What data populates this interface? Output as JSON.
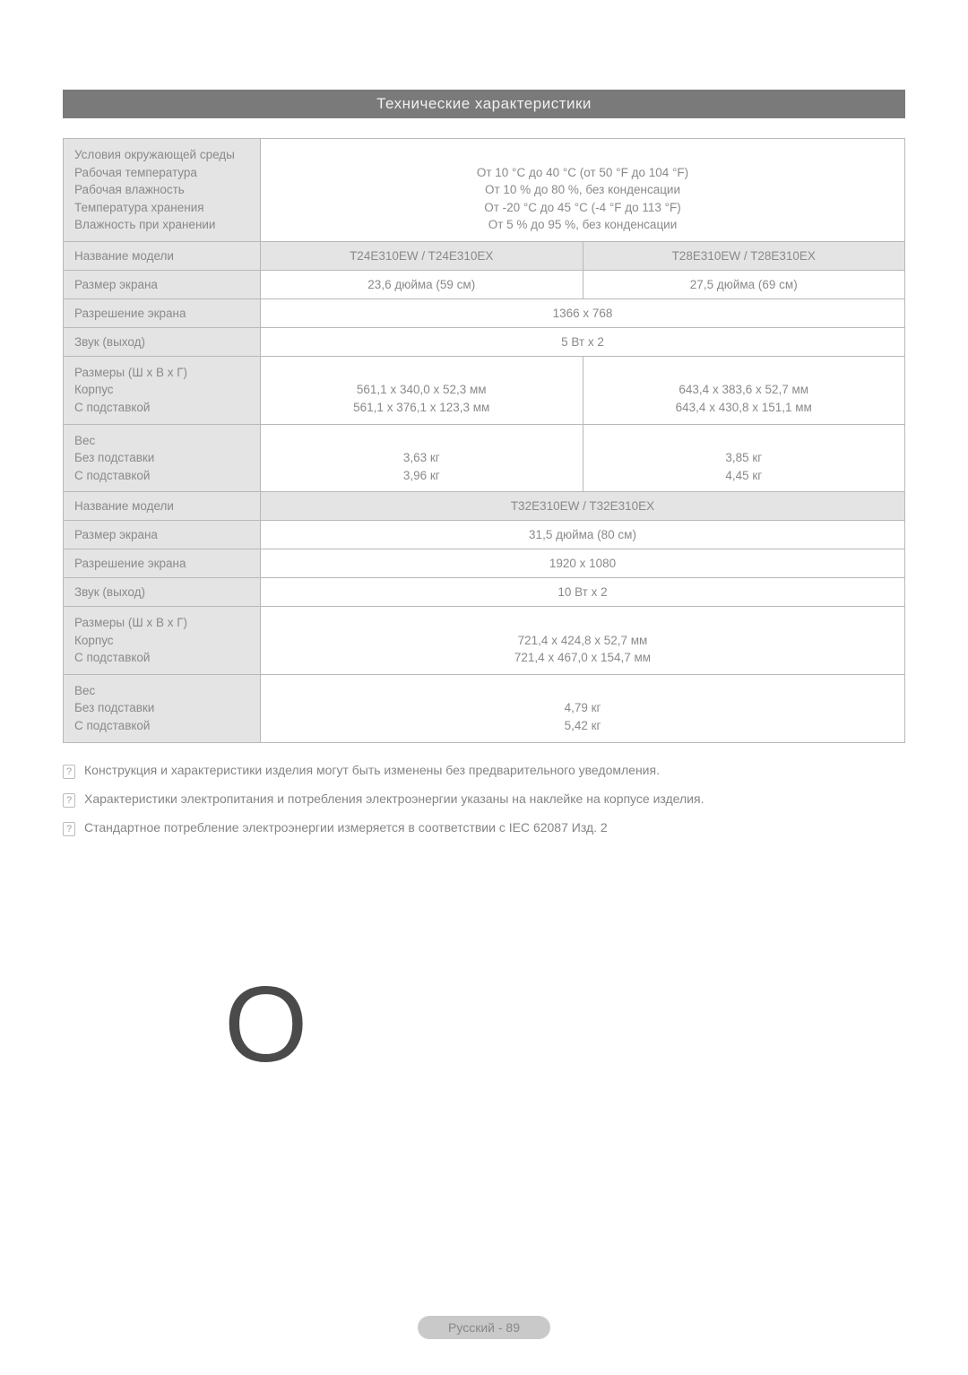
{
  "title": "Технические характеристики",
  "env": {
    "labels": [
      "Условия окружающей среды",
      "Рабочая температура",
      "Рабочая влажность",
      "Температура хранения",
      "Влажность при хранении"
    ],
    "values": [
      "",
      "От 10 °С до 40 °С (от 50 °F до 104 °F)",
      "От 10 % до 80 %, без конденсации",
      "От -20 °С до 45 °С (-4 °F до 113 °F)",
      "От 5 % до 95 %, без конденсации"
    ]
  },
  "block1": {
    "model_label": "Название модели",
    "model_a": "T24E310EW / T24E310EX",
    "model_b": "T28E310EW / T28E310EX",
    "screen_size_label": "Размер экрана",
    "screen_size_a": "23,6 дюйма (59 см)",
    "screen_size_b": "27,5 дюйма (69 см)",
    "resolution_label": "Разрешение экрана",
    "resolution": "1366 x 768",
    "sound_label": "Звук (выход)",
    "sound": "5 Вт x 2",
    "dims_labels": [
      "Размеры (Ш x В x Г)",
      "Корпус",
      "С подставкой"
    ],
    "dims_a": [
      "",
      "561,1 x 340,0 x 52,3 мм",
      "561,1 x 376,1 x 123,3 мм"
    ],
    "dims_b": [
      "",
      "643,4 x 383,6 x 52,7 мм",
      "643,4 x 430,8 x 151,1 мм"
    ],
    "weight_labels": [
      "Вес",
      "Без подставки",
      "С подставкой"
    ],
    "weight_a": [
      "",
      "3,63 кг",
      "3,96 кг"
    ],
    "weight_b": [
      "",
      "3,85 кг",
      "4,45 кг"
    ]
  },
  "block2": {
    "model_label": "Название модели",
    "model": "T32E310EW / T32E310EX",
    "screen_size_label": "Размер экрана",
    "screen_size": "31,5 дюйма (80 см)",
    "resolution_label": "Разрешение экрана",
    "resolution": "1920 x 1080",
    "sound_label": "Звук (выход)",
    "sound": "10 Вт x 2",
    "dims_labels": [
      "Размеры (Ш x В x Г)",
      "Корпус",
      "С подставкой"
    ],
    "dims": [
      "",
      "721,4 x 424,8 x 52,7 мм",
      "721,4 x 467,0 x 154,7 мм"
    ],
    "weight_labels": [
      "Вес",
      "Без подставки",
      "С подставкой"
    ],
    "weight": [
      "",
      "4,79 кг",
      "5,42 кг"
    ]
  },
  "notes": [
    "Конструкция и характеристики изделия могут быть изменены без предварительного уведомления.",
    "Характеристики электропитания и потребления электроэнергии указаны на наклейке на корпусе изделия.",
    "Стандартное потребление электроэнергии измеряется в соответствии с IEC 62087 Изд. 2"
  ],
  "big_letter": "O",
  "footer": "Русский - 89",
  "colors": {
    "title_bg": "#7a7a7a",
    "title_fg": "#f0f0f0",
    "cell_header_bg": "#e4e4e4",
    "border": "#b8b8b8",
    "text": "#8a8a8a",
    "footer_bg": "#c9c9c9"
  }
}
